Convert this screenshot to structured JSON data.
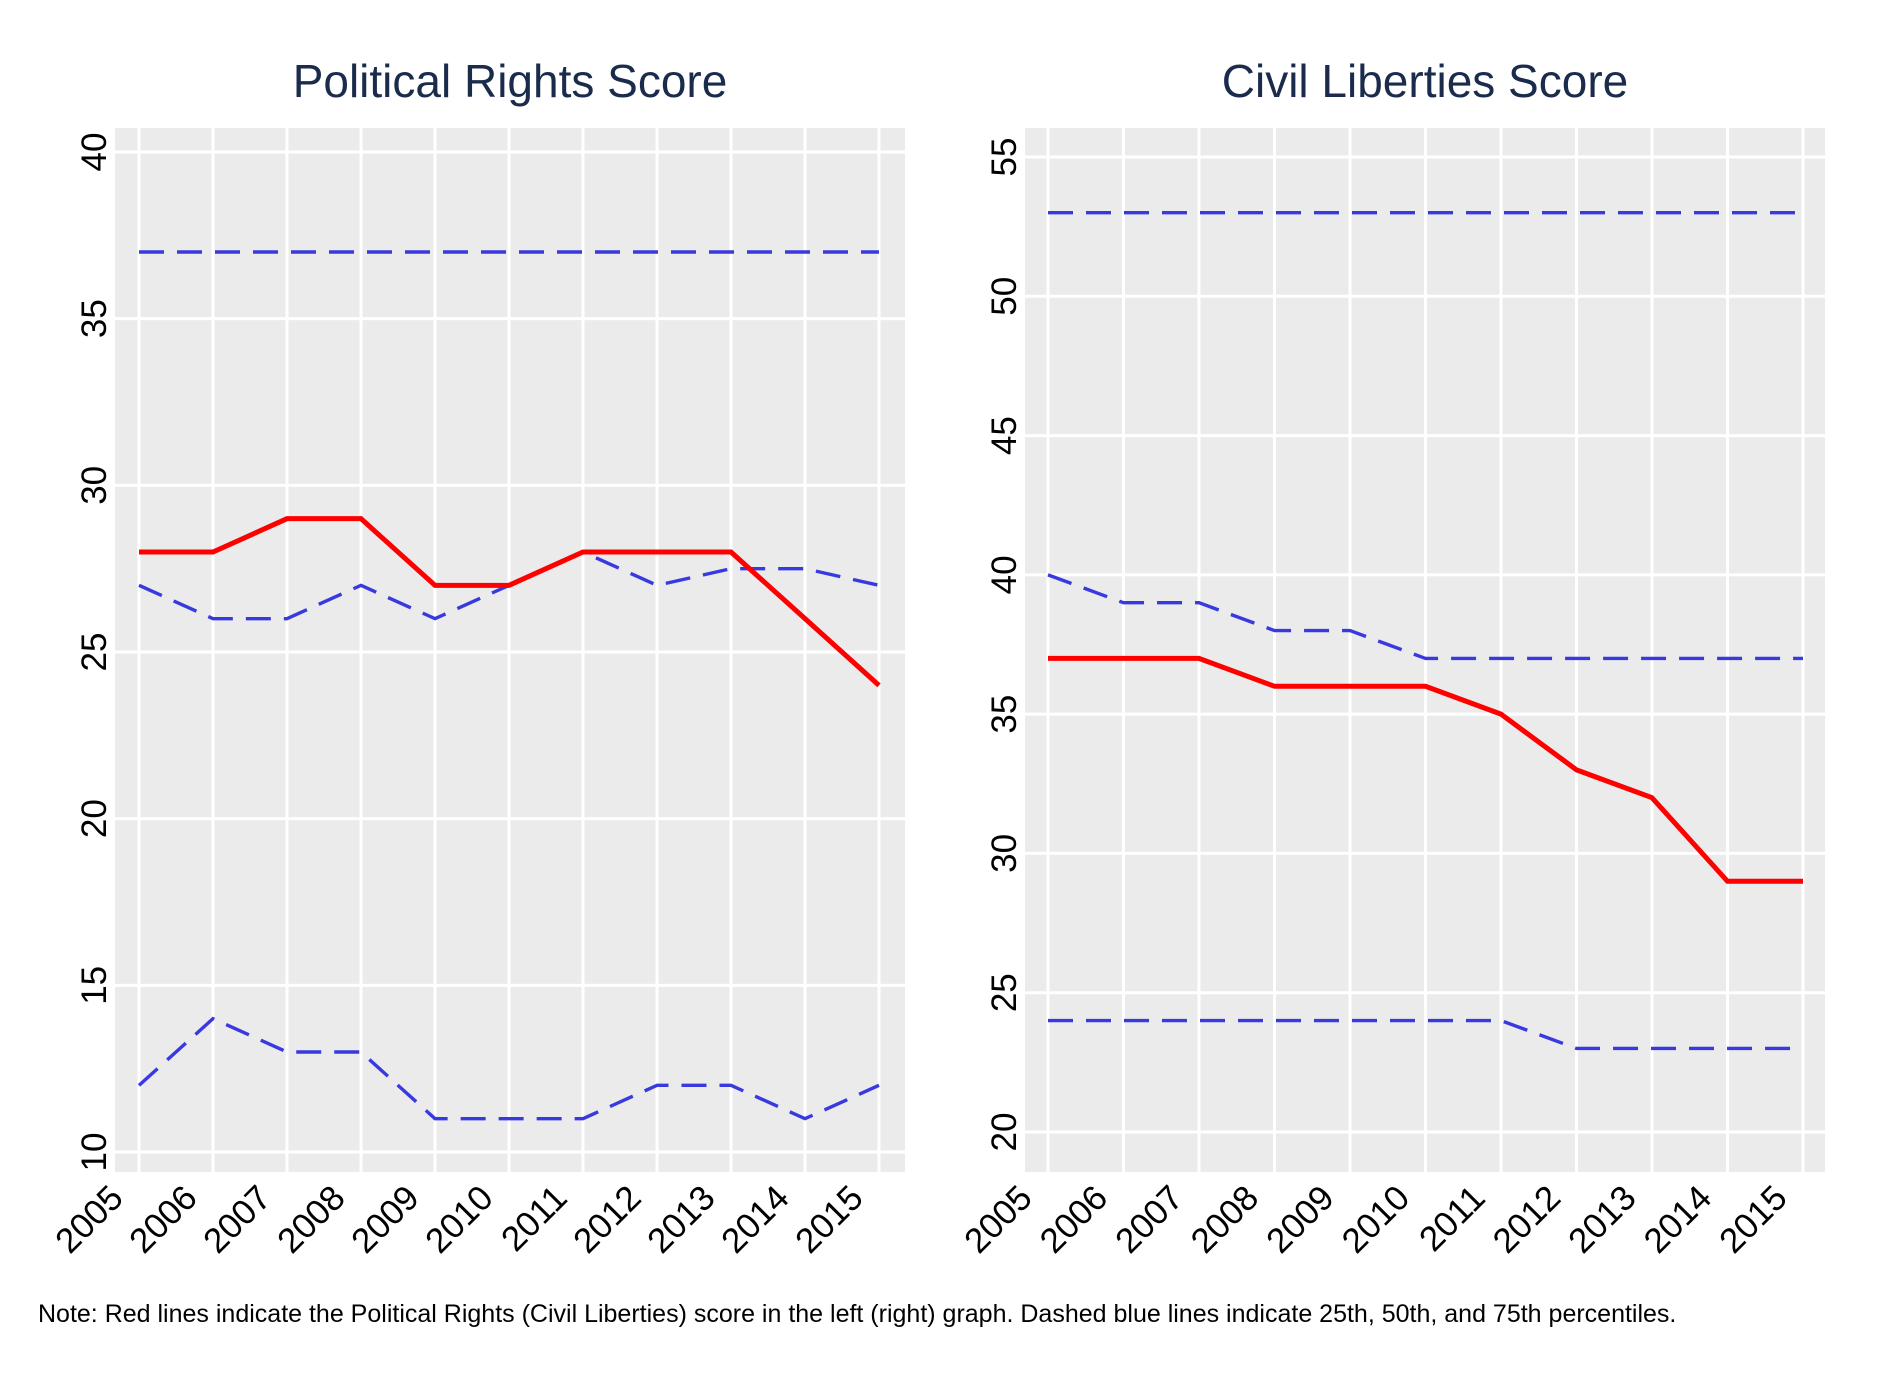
{
  "page": {
    "note": "Note: Red lines indicate the Political Rights (Civil Liberties) score in the left (right) graph. Dashed blue lines indicate 25th, 50th, and 75th percentiles."
  },
  "colors": {
    "red": "#fe0000",
    "blue": "#3939e0",
    "title": "#1a2b4c",
    "plot_bg": "#ebebeb",
    "grid": "#ffffff",
    "tick_text": "#000000"
  },
  "chart_data": [
    {
      "type": "line",
      "title": "Political Rights Score",
      "x": [
        2005,
        2006,
        2007,
        2008,
        2009,
        2010,
        2011,
        2012,
        2013,
        2014,
        2015
      ],
      "ylim": [
        10,
        40
      ],
      "yticks": [
        10,
        15,
        20,
        25,
        30,
        35,
        40
      ],
      "grid": true,
      "legend": "none",
      "x_tick_rotation": 45,
      "series": [
        {
          "name": "Political Rights score",
          "color": "red",
          "style": "solid",
          "values": [
            28,
            28,
            29,
            29,
            27,
            27,
            28,
            28,
            28,
            26,
            24
          ]
        },
        {
          "name": "75th percentile",
          "color": "blue",
          "style": "dashed",
          "values": [
            37,
            37,
            37,
            37,
            37,
            37,
            37,
            37,
            37,
            37,
            37
          ]
        },
        {
          "name": "50th percentile",
          "color": "blue",
          "style": "dashed",
          "values": [
            27,
            26,
            26,
            27,
            26,
            27,
            28,
            27,
            27.5,
            27.5,
            27
          ]
        },
        {
          "name": "25th percentile",
          "color": "blue",
          "style": "dashed",
          "values": [
            12,
            14,
            13,
            13,
            11,
            11,
            11,
            12,
            12,
            11,
            12
          ]
        }
      ]
    },
    {
      "type": "line",
      "title": "Civil Liberties Score",
      "x": [
        2005,
        2006,
        2007,
        2008,
        2009,
        2010,
        2011,
        2012,
        2013,
        2014,
        2015
      ],
      "ylim": [
        20,
        55
      ],
      "yticks": [
        20,
        25,
        30,
        35,
        40,
        45,
        50,
        55
      ],
      "grid": true,
      "legend": "none",
      "x_tick_rotation": 45,
      "series": [
        {
          "name": "Civil Liberties score",
          "color": "red",
          "style": "solid",
          "values": [
            37,
            37,
            37,
            36,
            36,
            36,
            35,
            33,
            32,
            29,
            29
          ]
        },
        {
          "name": "75th percentile",
          "color": "blue",
          "style": "dashed",
          "values": [
            53,
            53,
            53,
            53,
            53,
            53,
            53,
            53,
            53,
            53,
            53
          ]
        },
        {
          "name": "50th percentile",
          "color": "blue",
          "style": "dashed",
          "values": [
            40,
            39,
            39,
            38,
            38,
            37,
            37,
            37,
            37,
            37,
            37
          ]
        },
        {
          "name": "25th percentile",
          "color": "blue",
          "style": "dashed",
          "values": [
            24,
            24,
            24,
            24,
            24,
            24,
            24,
            23,
            23,
            23,
            23
          ]
        }
      ]
    }
  ]
}
